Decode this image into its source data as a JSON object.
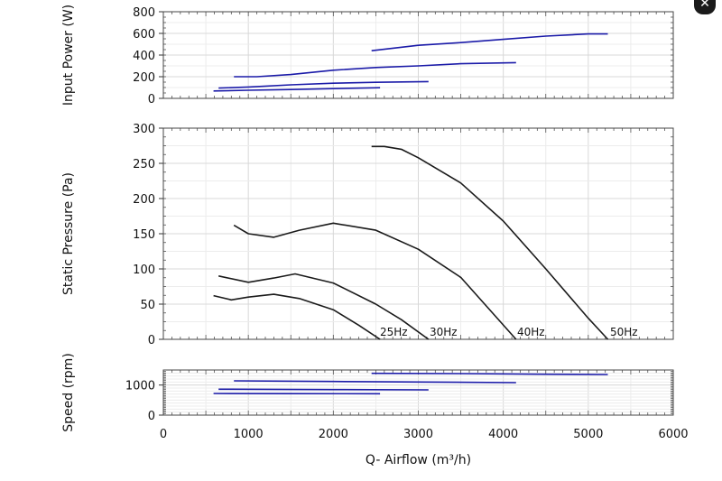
{
  "close_glyph": "✕",
  "chart_data": [
    {
      "type": "line",
      "ylabel": "Input Power (W)",
      "xlim": [
        0,
        6000
      ],
      "ylim": [
        0,
        800
      ],
      "yticks": [
        "0",
        "200",
        "400",
        "600",
        "800"
      ],
      "grid": true,
      "line_color": "#1a1aa8",
      "series": [
        {
          "x": [
            2450,
            3000,
            3500,
            4000,
            4500,
            5000,
            5230
          ],
          "y": [
            440,
            490,
            515,
            545,
            575,
            595,
            595
          ]
        },
        {
          "x": [
            830,
            1100,
            1500,
            2000,
            2500,
            3000,
            3500,
            4150
          ],
          "y": [
            200,
            200,
            220,
            260,
            285,
            300,
            320,
            330
          ]
        },
        {
          "x": [
            650,
            1000,
            1500,
            2000,
            2500,
            3120
          ],
          "y": [
            95,
            105,
            125,
            140,
            148,
            155
          ]
        },
        {
          "x": [
            590,
            1000,
            1500,
            2000,
            2550
          ],
          "y": [
            68,
            75,
            82,
            90,
            98
          ]
        }
      ]
    },
    {
      "type": "line",
      "ylabel": "Static Pressure (Pa)",
      "xlim": [
        0,
        6000
      ],
      "ylim": [
        0,
        300
      ],
      "yticks": [
        "0",
        "50",
        "100",
        "150",
        "200",
        "250",
        "300"
      ],
      "grid": true,
      "line_color": "#1a1a1a",
      "series": [
        {
          "name": "25Hz",
          "x": [
            590,
            800,
            1000,
            1300,
            1600,
            2000,
            2300,
            2550
          ],
          "y": [
            62,
            56,
            60,
            64,
            58,
            42,
            20,
            0
          ]
        },
        {
          "name": "30Hz",
          "x": [
            650,
            1000,
            1300,
            1550,
            2000,
            2500,
            2800,
            3120
          ],
          "y": [
            90,
            81,
            87,
            93,
            80,
            50,
            28,
            0
          ]
        },
        {
          "name": "40Hz",
          "x": [
            830,
            1000,
            1300,
            1600,
            2000,
            2500,
            3000,
            3500,
            4150
          ],
          "y": [
            162,
            150,
            145,
            155,
            165,
            155,
            128,
            88,
            0
          ]
        },
        {
          "name": "50Hz",
          "x": [
            2450,
            2600,
            2800,
            3000,
            3500,
            4000,
            4500,
            5000,
            5230
          ],
          "y": [
            274,
            274,
            270,
            258,
            222,
            168,
            100,
            30,
            0
          ]
        }
      ]
    },
    {
      "type": "line",
      "ylabel": "Speed (rpm)",
      "xlabel": "Q- Airflow (m³/h)",
      "xlim": [
        0,
        6000
      ],
      "ylim": [
        0,
        1500
      ],
      "yticks": [
        "0",
        "1000"
      ],
      "xticks": [
        "0",
        "1000",
        "2000",
        "3000",
        "4000",
        "5000",
        "6000"
      ],
      "grid": true,
      "line_color": "#1a1aa8",
      "series": [
        {
          "x": [
            2450,
            3500,
            4500,
            5230
          ],
          "y": [
            1390,
            1380,
            1360,
            1350
          ]
        },
        {
          "x": [
            830,
            2000,
            3000,
            4150
          ],
          "y": [
            1140,
            1120,
            1100,
            1080
          ]
        },
        {
          "x": [
            650,
            2000,
            3120
          ],
          "y": [
            860,
            850,
            840
          ]
        },
        {
          "x": [
            590,
            1500,
            2550
          ],
          "y": [
            720,
            715,
            710
          ]
        }
      ]
    }
  ]
}
